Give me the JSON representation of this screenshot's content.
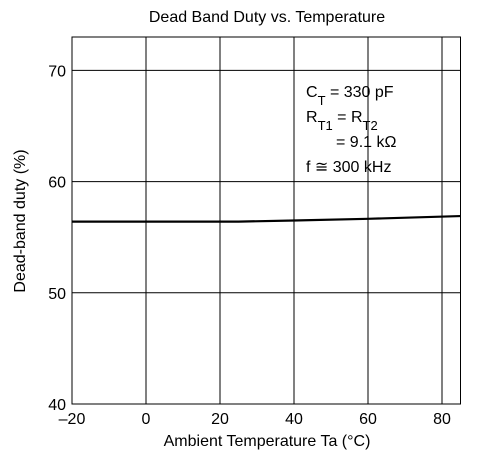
{
  "chart_data": {
    "type": "line",
    "title": "Dead Band Duty vs. Temperature",
    "xlabel": "Ambient Temperature Ta (°C)",
    "ylabel": "Dead-band duty (%)",
    "x": [
      -20,
      25,
      40,
      60,
      85
    ],
    "series": [
      {
        "color": "#000000",
        "values": [
          56.4,
          56.4,
          56.5,
          56.65,
          56.9
        ]
      }
    ],
    "xlim": [
      -20,
      85
    ],
    "ylim": [
      40,
      73
    ],
    "xticks": [
      {
        "value": -20,
        "label": "–20"
      },
      0,
      20,
      40,
      60,
      80
    ],
    "yticks": [
      40,
      50,
      60,
      70
    ],
    "grid": true,
    "annotation": [
      [
        "C",
        "T",
        " = 330 pF"
      ],
      [
        "R",
        "T1",
        " = R",
        "T2"
      ],
      [
        "= 9.1 kΩ"
      ],
      [
        "f ≅ 300 kHz"
      ]
    ]
  }
}
